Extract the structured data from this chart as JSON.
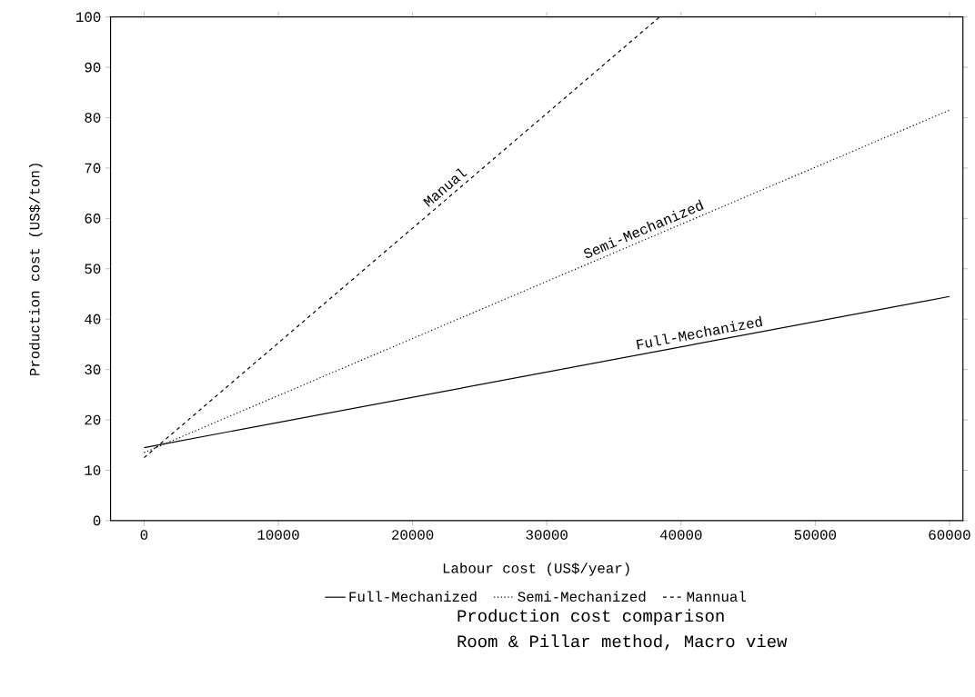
{
  "chart_data": {
    "type": "line",
    "title": "Production cost comparison",
    "subtitle": "Room & Pillar method, Macro view",
    "xlabel": "Labour cost (US$/year)",
    "ylabel": "Production cost (US$/ton)",
    "xlim": [
      -2500,
      61000
    ],
    "ylim": [
      0,
      100
    ],
    "xticks": [
      0,
      10000,
      20000,
      30000,
      40000,
      50000,
      60000
    ],
    "yticks": [
      0,
      10,
      20,
      30,
      40,
      50,
      60,
      70,
      80,
      90,
      100
    ],
    "grid": false,
    "legend": "bottom",
    "marker": "none",
    "series": [
      {
        "name": "Full-Mechanized",
        "color": "#000000",
        "line_style": "solid",
        "x": [
          0,
          60000
        ],
        "values": [
          14.5,
          44.5
        ]
      },
      {
        "name": "Semi-Mechanized",
        "color": "#000000",
        "line_style": "dotted",
        "x": [
          0,
          60000
        ],
        "values": [
          13.5,
          81.5
        ]
      },
      {
        "name": "Mannual",
        "color": "#000000",
        "line_style": "dashed",
        "x": [
          0,
          38400
        ],
        "values": [
          12.5,
          100
        ]
      }
    ],
    "annotations": [
      {
        "text": "Manual",
        "x": 22900,
        "y": 64.7
      },
      {
        "text": "Semi-Mechanized",
        "x": 37500,
        "y": 56
      },
      {
        "text": "Full-Mechanized",
        "x": 41500,
        "y": 35.3
      }
    ]
  }
}
